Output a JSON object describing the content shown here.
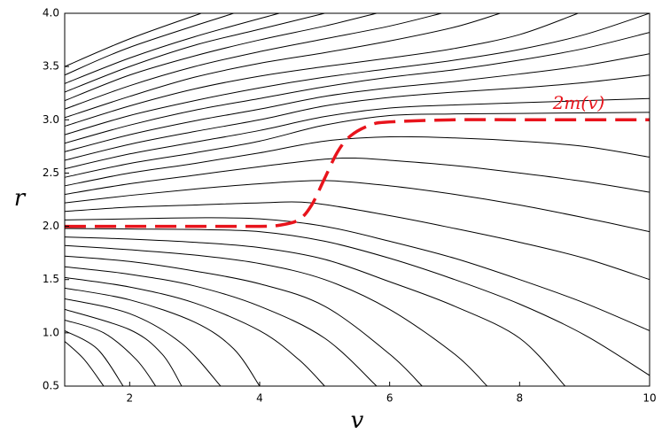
{
  "chart_data": {
    "type": "line",
    "xlabel": "v",
    "ylabel": "r",
    "xlim": [
      1,
      10
    ],
    "ylim": [
      0.5,
      4.0
    ],
    "xticks": [
      2,
      4,
      6,
      8,
      10
    ],
    "yticks": [
      0.5,
      {
        "value": 1,
        "label": "1.0"
      },
      1.5,
      {
        "value": 2,
        "label": "2.0"
      },
      2.5,
      {
        "value": 3,
        "label": "3.0"
      },
      3.5,
      {
        "value": 4,
        "label": "4.0"
      }
    ],
    "series": [
      {
        "color": "#000000",
        "x": [
          1,
          2,
          3.1
        ],
        "values": [
          3.5,
          3.76,
          4.0
        ]
      },
      {
        "color": "#000000",
        "x": [
          1,
          2,
          3.6
        ],
        "values": [
          3.42,
          3.68,
          4.0
        ]
      },
      {
        "color": "#000000",
        "x": [
          1,
          2,
          3,
          4.3
        ],
        "values": [
          3.34,
          3.58,
          3.78,
          4.0
        ]
      },
      {
        "color": "#000000",
        "x": [
          1,
          2,
          3,
          4,
          5
        ],
        "values": [
          3.26,
          3.5,
          3.7,
          3.85,
          4.0
        ]
      },
      {
        "color": "#000000",
        "x": [
          1,
          2,
          3,
          4,
          5,
          5.8
        ],
        "values": [
          3.18,
          3.42,
          3.6,
          3.75,
          3.88,
          4.0
        ]
      },
      {
        "color": "#000000",
        "x": [
          1,
          2,
          3,
          4,
          5,
          6,
          6.8
        ],
        "values": [
          3.1,
          3.32,
          3.5,
          3.64,
          3.76,
          3.88,
          4.0
        ]
      },
      {
        "color": "#000000",
        "x": [
          1,
          2,
          3,
          4,
          5,
          6,
          7,
          7.7
        ],
        "values": [
          3.02,
          3.22,
          3.4,
          3.53,
          3.63,
          3.74,
          3.87,
          4.0
        ]
      },
      {
        "color": "#000000",
        "x": [
          1,
          2,
          3,
          4,
          5,
          6,
          7,
          8,
          8.9
        ],
        "values": [
          2.94,
          3.13,
          3.29,
          3.41,
          3.5,
          3.58,
          3.67,
          3.8,
          4.0
        ]
      },
      {
        "color": "#000000",
        "x": [
          1,
          2,
          3,
          4,
          5,
          6,
          7,
          8,
          9,
          10
        ],
        "values": [
          2.86,
          3.04,
          3.18,
          3.3,
          3.4,
          3.48,
          3.56,
          3.66,
          3.8,
          4.0
        ]
      },
      {
        "color": "#000000",
        "x": [
          1,
          2,
          3,
          4,
          5,
          6,
          7,
          8,
          9,
          10
        ],
        "values": [
          2.78,
          2.95,
          3.09,
          3.2,
          3.31,
          3.4,
          3.47,
          3.56,
          3.67,
          3.82
        ]
      },
      {
        "color": "#000000",
        "x": [
          1,
          2,
          3,
          4,
          5,
          6,
          7,
          8,
          9,
          10
        ],
        "values": [
          2.7,
          2.86,
          2.99,
          3.1,
          3.22,
          3.3,
          3.36,
          3.43,
          3.51,
          3.62
        ]
      },
      {
        "color": "#000000",
        "x": [
          1,
          2,
          3,
          4,
          5,
          6,
          7,
          8,
          9,
          10
        ],
        "values": [
          2.62,
          2.77,
          2.89,
          3.0,
          3.13,
          3.21,
          3.26,
          3.3,
          3.35,
          3.42
        ]
      },
      {
        "color": "#000000",
        "x": [
          1,
          2,
          3,
          4,
          5,
          6,
          7,
          8,
          9,
          10
        ],
        "values": [
          2.54,
          2.68,
          2.79,
          2.9,
          3.03,
          3.11,
          3.14,
          3.16,
          3.18,
          3.2
        ]
      },
      {
        "color": "#000000",
        "x": [
          1,
          2,
          3,
          4,
          5,
          6,
          7,
          8,
          9,
          10
        ],
        "values": [
          2.46,
          2.59,
          2.69,
          2.8,
          2.95,
          3.04,
          3.055,
          3.06,
          3.065,
          3.07
        ]
      },
      {
        "color": "#000000",
        "x": [
          1,
          2,
          3,
          4,
          5,
          6,
          7,
          8,
          9,
          10
        ],
        "values": [
          2.38,
          2.5,
          2.59,
          2.69,
          2.8,
          2.84,
          2.83,
          2.8,
          2.75,
          2.65
        ]
      },
      {
        "color": "#000000",
        "x": [
          1,
          2,
          3,
          4,
          5,
          5.5,
          6,
          7,
          8,
          9,
          10
        ],
        "values": [
          2.3,
          2.4,
          2.48,
          2.56,
          2.63,
          2.64,
          2.62,
          2.57,
          2.5,
          2.42,
          2.32
        ]
      },
      {
        "color": "#000000",
        "x": [
          1,
          2,
          3,
          4,
          5,
          6,
          7,
          8,
          9,
          10
        ],
        "values": [
          2.22,
          2.29,
          2.35,
          2.4,
          2.43,
          2.38,
          2.3,
          2.2,
          2.08,
          1.95
        ]
      },
      {
        "color": "#000000",
        "x": [
          1,
          2,
          3,
          4,
          4.8,
          6,
          7,
          8,
          9,
          10
        ],
        "values": [
          2.14,
          2.18,
          2.2,
          2.22,
          2.22,
          2.1,
          1.98,
          1.85,
          1.7,
          1.5
        ]
      },
      {
        "color": "#000000",
        "x": [
          1,
          2,
          3,
          4,
          5,
          6,
          7,
          8,
          9,
          10
        ],
        "values": [
          2.06,
          2.07,
          2.08,
          2.07,
          2.0,
          1.86,
          1.7,
          1.5,
          1.28,
          1.02
        ]
      },
      {
        "color": "#000000",
        "x": [
          1,
          2,
          3,
          4,
          5,
          6,
          7,
          8,
          9,
          10
        ],
        "values": [
          1.98,
          1.975,
          1.97,
          1.95,
          1.86,
          1.7,
          1.5,
          1.27,
          0.98,
          0.6
        ]
      },
      {
        "color": "#000000",
        "x": [
          1,
          2,
          3,
          4,
          5,
          6,
          7,
          8,
          8.7
        ],
        "values": [
          1.9,
          1.88,
          1.85,
          1.8,
          1.69,
          1.48,
          1.25,
          0.95,
          0.5
        ]
      },
      {
        "color": "#000000",
        "x": [
          1,
          2,
          3,
          4,
          5,
          6,
          7,
          7.5
        ],
        "values": [
          1.82,
          1.78,
          1.73,
          1.65,
          1.5,
          1.22,
          0.8,
          0.5
        ]
      },
      {
        "color": "#000000",
        "x": [
          1,
          2,
          3,
          4,
          5,
          6,
          6.5
        ],
        "values": [
          1.72,
          1.67,
          1.58,
          1.46,
          1.25,
          0.8,
          0.5
        ]
      },
      {
        "color": "#000000",
        "x": [
          1,
          2,
          3,
          4,
          5,
          5.8
        ],
        "values": [
          1.62,
          1.55,
          1.44,
          1.25,
          0.95,
          0.5
        ]
      },
      {
        "color": "#000000",
        "x": [
          1,
          2,
          3,
          4,
          4.6,
          5.0
        ],
        "values": [
          1.52,
          1.43,
          1.28,
          1.02,
          0.75,
          0.5
        ]
      },
      {
        "color": "#000000",
        "x": [
          1,
          2,
          3,
          3.6,
          4.0
        ],
        "values": [
          1.42,
          1.31,
          1.1,
          0.85,
          0.5
        ]
      },
      {
        "color": "#000000",
        "x": [
          1,
          2,
          2.8,
          3.4
        ],
        "values": [
          1.32,
          1.18,
          0.9,
          0.5
        ]
      },
      {
        "color": "#000000",
        "x": [
          1,
          2,
          2.5,
          2.8
        ],
        "values": [
          1.22,
          1.03,
          0.8,
          0.5
        ]
      },
      {
        "color": "#000000",
        "x": [
          1,
          1.6,
          2.1,
          2.4
        ],
        "values": [
          1.12,
          1.0,
          0.75,
          0.5
        ]
      },
      {
        "color": "#000000",
        "x": [
          1,
          1.5,
          1.9
        ],
        "values": [
          1.02,
          0.85,
          0.5
        ]
      },
      {
        "color": "#000000",
        "x": [
          1,
          1.3,
          1.6
        ],
        "values": [
          0.92,
          0.75,
          0.5
        ]
      },
      {
        "name": "2m(v)",
        "color": "#e8141c",
        "dashed": true,
        "x": [
          1,
          2,
          3,
          4,
          4.3,
          4.6,
          4.8,
          5.0,
          5.2,
          5.4,
          5.7,
          6,
          7,
          8,
          9,
          10
        ],
        "values": [
          2,
          2,
          2,
          2,
          2.01,
          2.06,
          2.2,
          2.45,
          2.7,
          2.85,
          2.95,
          2.98,
          3,
          3,
          3,
          3
        ]
      }
    ]
  }
}
